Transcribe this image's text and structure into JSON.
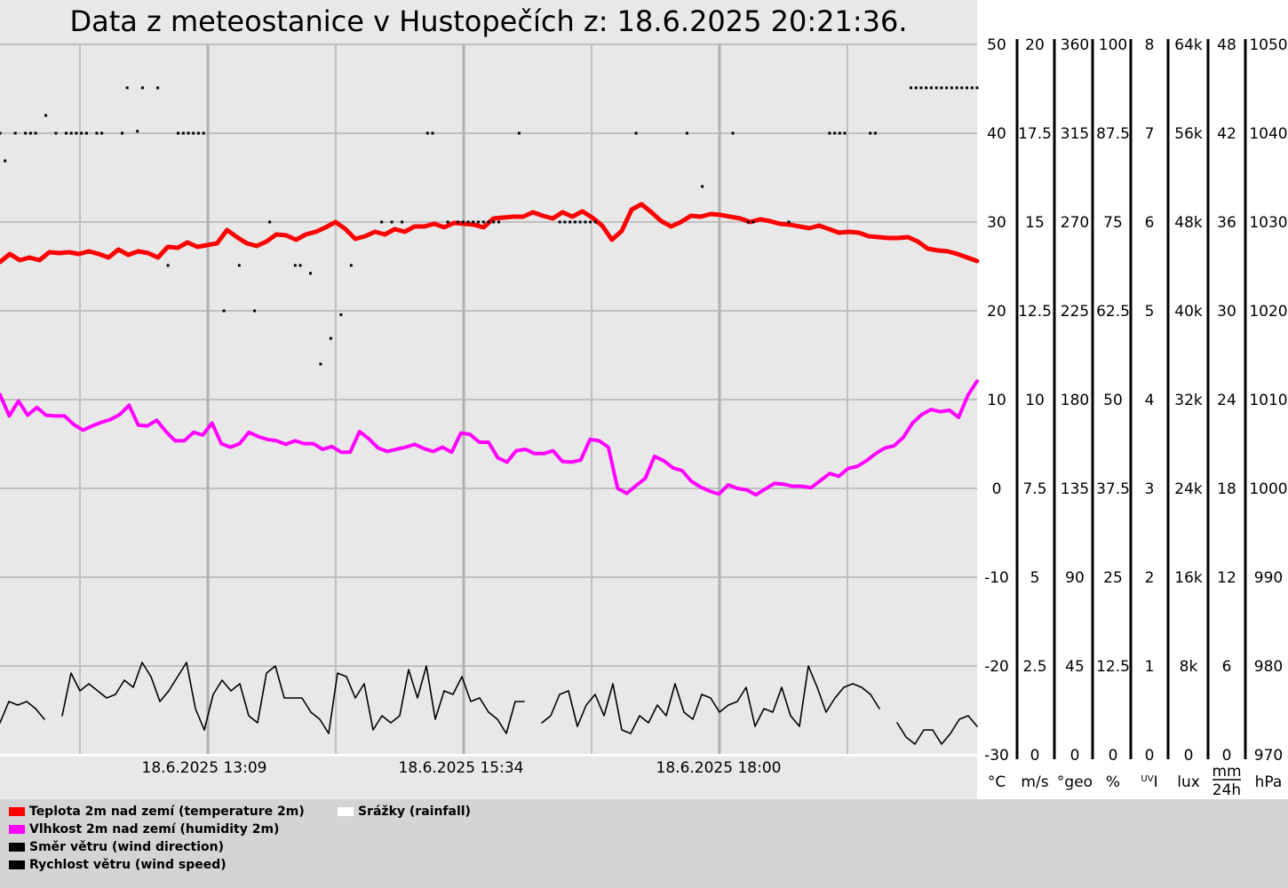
{
  "title": "Data z meteostanice v Hustopečích z: 18.6.2025 20:21:36.",
  "x_labels": [
    "18.6.2025 13:09",
    "18.6.2025 15:34",
    "18.6.2025 18:00"
  ],
  "axes": [
    {
      "id": "ax-temp",
      "unit": "°C",
      "ticks": [
        "50",
        "40",
        "30",
        "20",
        "10",
        "0",
        "-10",
        "-20",
        "-30"
      ]
    },
    {
      "id": "ax-wind-speed",
      "unit": "m/s",
      "ticks": [
        "20",
        "17.5",
        "15",
        "12.5",
        "10",
        "7.5",
        "5",
        "2.5",
        "0"
      ]
    },
    {
      "id": "ax-wind-dir",
      "unit": "°geo",
      "ticks": [
        "360",
        "315",
        "270",
        "225",
        "180",
        "135",
        "90",
        "45",
        "0"
      ]
    },
    {
      "id": "ax-humidity",
      "unit": "%",
      "ticks": [
        "100",
        "87.5",
        "75",
        "62.5",
        "50",
        "37.5",
        "25",
        "12.5",
        "0"
      ]
    },
    {
      "id": "ax-uv",
      "unit": "UV I",
      "ticks": [
        "8",
        "7",
        "6",
        "5",
        "4",
        "3",
        "2",
        "1",
        "0"
      ]
    },
    {
      "id": "ax-lux",
      "unit": "lux",
      "ticks": [
        "64k",
        "56k",
        "48k",
        "40k",
        "32k",
        "24k",
        "16k",
        "8k",
        "0"
      ]
    },
    {
      "id": "ax-rain",
      "unit": "mm / 24h",
      "ticks": [
        "48",
        "42",
        "36",
        "30",
        "24",
        "18",
        "12",
        "6",
        "0"
      ]
    },
    {
      "id": "ax-pressure",
      "unit": "hPa",
      "ticks": [
        "1050",
        "1040",
        "1030",
        "1020",
        "1010",
        "1000",
        "990",
        "980",
        "970"
      ]
    }
  ],
  "legend": [
    {
      "label": "Teplota 2m nad zemí (temperature 2m)",
      "color": "#ff0000"
    },
    {
      "label": "Vlhkost 2m nad zemí (humidity 2m)",
      "color": "#ff00ff"
    },
    {
      "label": "Směr větru (wind direction)",
      "color": "#000000"
    },
    {
      "label": "Rychlost větru (wind speed)",
      "color": "#000000"
    },
    {
      "label": "Srážky (rainfall)",
      "color": "#ffffff"
    }
  ],
  "chart_data": {
    "type": "line",
    "title": "Data z meteostanice v Hustopečích z: 18.6.2025 20:21:36.",
    "x_tick_labels": [
      "18.6.2025 13:09",
      "18.6.2025 15:34",
      "18.6.2025 18:00"
    ],
    "grid": true,
    "series": [
      {
        "name": "Teplota 2m nad zemí (temperature 2m)",
        "color": "#ff0000",
        "axis": "°C",
        "ylim": [
          -30,
          50
        ],
        "values": [
          25.5,
          26.4,
          25.7,
          26.0,
          25.7,
          26.6,
          26.5,
          26.6,
          26.4,
          26.7,
          26.4,
          26.0,
          26.9,
          26.3,
          26.7,
          26.5,
          26.0,
          27.2,
          27.1,
          27.7,
          27.2,
          27.4,
          27.6,
          29.1,
          28.3,
          27.6,
          27.3,
          27.8,
          28.6,
          28.5,
          28.0,
          28.6,
          28.9,
          29.4,
          30.0,
          29.2,
          28.1,
          28.4,
          28.9,
          28.6,
          29.2,
          28.9,
          29.5,
          29.5,
          29.8,
          29.4,
          29.9,
          29.8,
          29.7,
          29.4,
          30.4,
          30.5,
          30.6,
          30.6,
          31.1,
          30.7,
          30.4,
          31.1,
          30.6,
          31.2,
          30.5,
          29.6,
          28.0,
          29.0,
          31.4,
          32.0,
          31.1,
          30.1,
          29.5,
          30.0,
          30.7,
          30.6,
          30.9,
          30.8,
          30.6,
          30.4,
          30.0,
          30.3,
          30.1,
          29.8,
          29.7,
          29.5,
          29.3,
          29.6,
          29.2,
          28.8,
          28.9,
          28.8,
          28.4,
          28.3,
          28.2,
          28.2,
          28.3,
          27.8,
          27.0,
          26.8,
          26.7,
          26.4,
          26.0,
          25.6
        ]
      },
      {
        "name": "Vlhkost 2m nad zemí (humidity 2m)",
        "color": "#ff00ff",
        "axis": "%",
        "ylim": [
          0,
          100
        ],
        "values": [
          50.7,
          47.7,
          49.8,
          47.8,
          48.9,
          47.8,
          47.7,
          47.7,
          46.5,
          45.7,
          46.3,
          46.8,
          47.2,
          47.9,
          49.2,
          46.4,
          46.3,
          47.1,
          45.5,
          44.2,
          44.2,
          45.4,
          45.0,
          46.7,
          43.8,
          43.3,
          43.8,
          45.4,
          44.8,
          44.4,
          44.2,
          43.7,
          44.2,
          43.8,
          43.8,
          43.0,
          43.4,
          42.6,
          42.6,
          45.5,
          44.5,
          43.2,
          42.7,
          43.0,
          43.3,
          43.7,
          43.1,
          42.7,
          43.3,
          42.6,
          45.3,
          45.1,
          44.0,
          44.0,
          41.8,
          41.2,
          42.8,
          43.0,
          42.4,
          42.4,
          42.8,
          41.3,
          41.2,
          41.5,
          44.4,
          44.2,
          43.3,
          37.5,
          36.8,
          37.9,
          38.9,
          42.0,
          41.4,
          40.4,
          40.0,
          38.5,
          37.7,
          37.1,
          36.7,
          38.0,
          37.5,
          37.3,
          36.6,
          37.4,
          38.2,
          38.1,
          37.8,
          37.8,
          37.6,
          38.6,
          39.6,
          39.2,
          40.3,
          40.6,
          41.4,
          42.4,
          43.2,
          43.5,
          44.7,
          46.7,
          47.9,
          48.6,
          48.3,
          48.5,
          47.5,
          50.6,
          52.6
        ]
      },
      {
        "name": "Rychlost větru (wind speed)",
        "color": "#000000",
        "axis": "m/s",
        "ylim": [
          0,
          20
        ],
        "values": [
          0.9,
          1.5,
          1.4,
          1.5,
          1.3,
          1.0,
          null,
          1.1,
          2.3,
          1.8,
          2.0,
          1.8,
          1.6,
          1.7,
          2.1,
          1.9,
          2.6,
          2.2,
          1.5,
          1.8,
          2.2,
          2.6,
          1.3,
          0.7,
          1.7,
          2.1,
          1.8,
          2.0,
          1.1,
          0.9,
          2.3,
          2.5,
          1.6,
          1.6,
          1.6,
          1.2,
          1.0,
          0.6,
          2.3,
          2.2,
          1.6,
          2.0,
          0.7,
          1.1,
          0.9,
          1.1,
          2.4,
          1.6,
          2.5,
          1.0,
          1.8,
          1.7,
          2.2,
          1.5,
          1.6,
          1.2,
          1.0,
          0.6,
          1.5,
          1.5,
          null,
          0.9,
          1.1,
          1.7,
          1.8,
          0.8,
          1.4,
          1.7,
          1.1,
          2.0,
          0.7,
          0.6,
          1.1,
          0.9,
          1.4,
          1.1,
          2.0,
          1.2,
          1.0,
          1.7,
          1.6,
          1.2,
          1.4,
          1.5,
          1.9,
          0.8,
          1.3,
          1.2,
          1.9,
          1.1,
          0.8,
          2.5,
          1.9,
          1.2,
          1.6,
          1.9,
          2.0,
          1.9,
          1.7,
          1.3,
          null,
          0.9,
          0.5,
          0.3,
          0.7,
          0.7,
          0.3,
          0.6,
          1.0,
          1.1,
          0.8
        ]
      },
      {
        "name": "Směr větru (wind direction)",
        "color": "#000000",
        "axis": "°geo",
        "ylim": [
          0,
          360
        ],
        "values": [
          315,
          301,
          null,
          315,
          null,
          315,
          315,
          315,
          null,
          324,
          null,
          315,
          null,
          315,
          315,
          315,
          315,
          315,
          null,
          315,
          315,
          null,
          null,
          null,
          315,
          338,
          null,
          316,
          338,
          null,
          null,
          338,
          null,
          248,
          null,
          315,
          315,
          315,
          315,
          315,
          315,
          null,
          null,
          null,
          225,
          null,
          null,
          248,
          null,
          null,
          225,
          null,
          null,
          270,
          null,
          null,
          null,
          null,
          248,
          248,
          null,
          244,
          null,
          198,
          null,
          211,
          null,
          223,
          null,
          248,
          null,
          null,
          null,
          null,
          null,
          270,
          null,
          270,
          null,
          270,
          null,
          null,
          null,
          null,
          315,
          315,
          null,
          null,
          270,
          null,
          270,
          270,
          270,
          270,
          270,
          270,
          270,
          270,
          270,
          null,
          null,
          null,
          315,
          null,
          null,
          null,
          null,
          null,
          null,
          null,
          270,
          270,
          270,
          270,
          270,
          270,
          270,
          270,
          null,
          null,
          null,
          null,
          null,
          null,
          null,
          315,
          null,
          null,
          null,
          null,
          null,
          null,
          null,
          null,
          null,
          315,
          null,
          null,
          288,
          null,
          null,
          null,
          null,
          null,
          315,
          null,
          null,
          270,
          270,
          null,
          null,
          null,
          null,
          null,
          null,
          270,
          null,
          null,
          null,
          null,
          null,
          null,
          null,
          315,
          315,
          315,
          315,
          null,
          null,
          null,
          null,
          315,
          315,
          null,
          null,
          null,
          null,
          null,
          null,
          338,
          338,
          338,
          338,
          338,
          338,
          338,
          338,
          338,
          338,
          338,
          338,
          338,
          338
        ]
      }
    ]
  }
}
